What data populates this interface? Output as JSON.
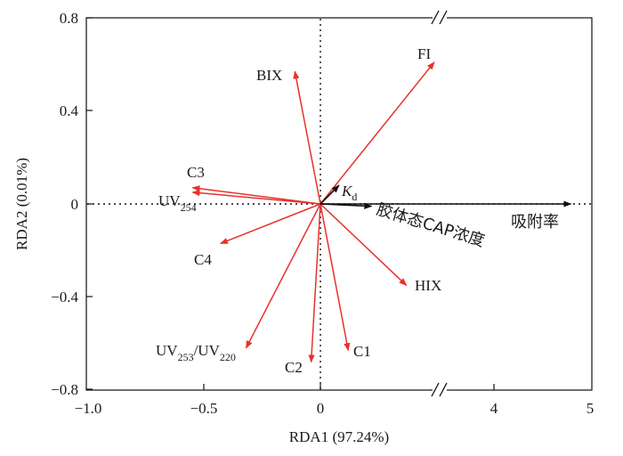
{
  "chart_data": {
    "type": "scatter",
    "xlabel": "RDA1 (97.24%)",
    "ylabel": "RDA2 (0.01%)",
    "xlim": [
      -1.0,
      5
    ],
    "ylim": [
      -0.8,
      0.8
    ],
    "x_axis_break": true,
    "y_axis_break": true,
    "x_ticks": [
      "−1.0",
      "−0.5",
      "0",
      "4",
      "5"
    ],
    "y_ticks": [
      "0.8",
      "0.4",
      "0",
      "−0.4",
      "−0.8"
    ],
    "grid": false,
    "reference_lines": [
      "x=0 dotted",
      "y=0 dotted"
    ],
    "colors": {
      "response": "#e8312a",
      "explanatory": "#111111"
    },
    "response_vectors": [
      {
        "label": "FI",
        "x": 0.49,
        "y": 0.61
      },
      {
        "label": "BIX",
        "x": -0.11,
        "y": 0.57
      },
      {
        "label": "C3",
        "x": -0.55,
        "y": 0.07
      },
      {
        "label_main": "UV",
        "label_sub": "254",
        "x": -0.55,
        "y": 0.05
      },
      {
        "label": "C4",
        "x": -0.43,
        "y": -0.17
      },
      {
        "label": "HIX",
        "x": 0.37,
        "y": -0.35
      },
      {
        "label": "C1",
        "x": 0.12,
        "y": -0.63
      },
      {
        "label": "C2",
        "x": -0.04,
        "y": -0.68
      },
      {
        "label_main": "UV",
        "label_sub": "253",
        "label_mid": "/UV",
        "label_sub2": "220",
        "x": -0.32,
        "y": -0.62
      }
    ],
    "explanatory_vectors": [
      {
        "label_main": "K",
        "label_sub": "d",
        "x": 0.08,
        "y": 0.08
      },
      {
        "label": "胶体态CAP浓度",
        "x": 0.22,
        "y": -0.01
      },
      {
        "label": "吸附率",
        "x": 4.8,
        "y": 0.0
      }
    ]
  }
}
